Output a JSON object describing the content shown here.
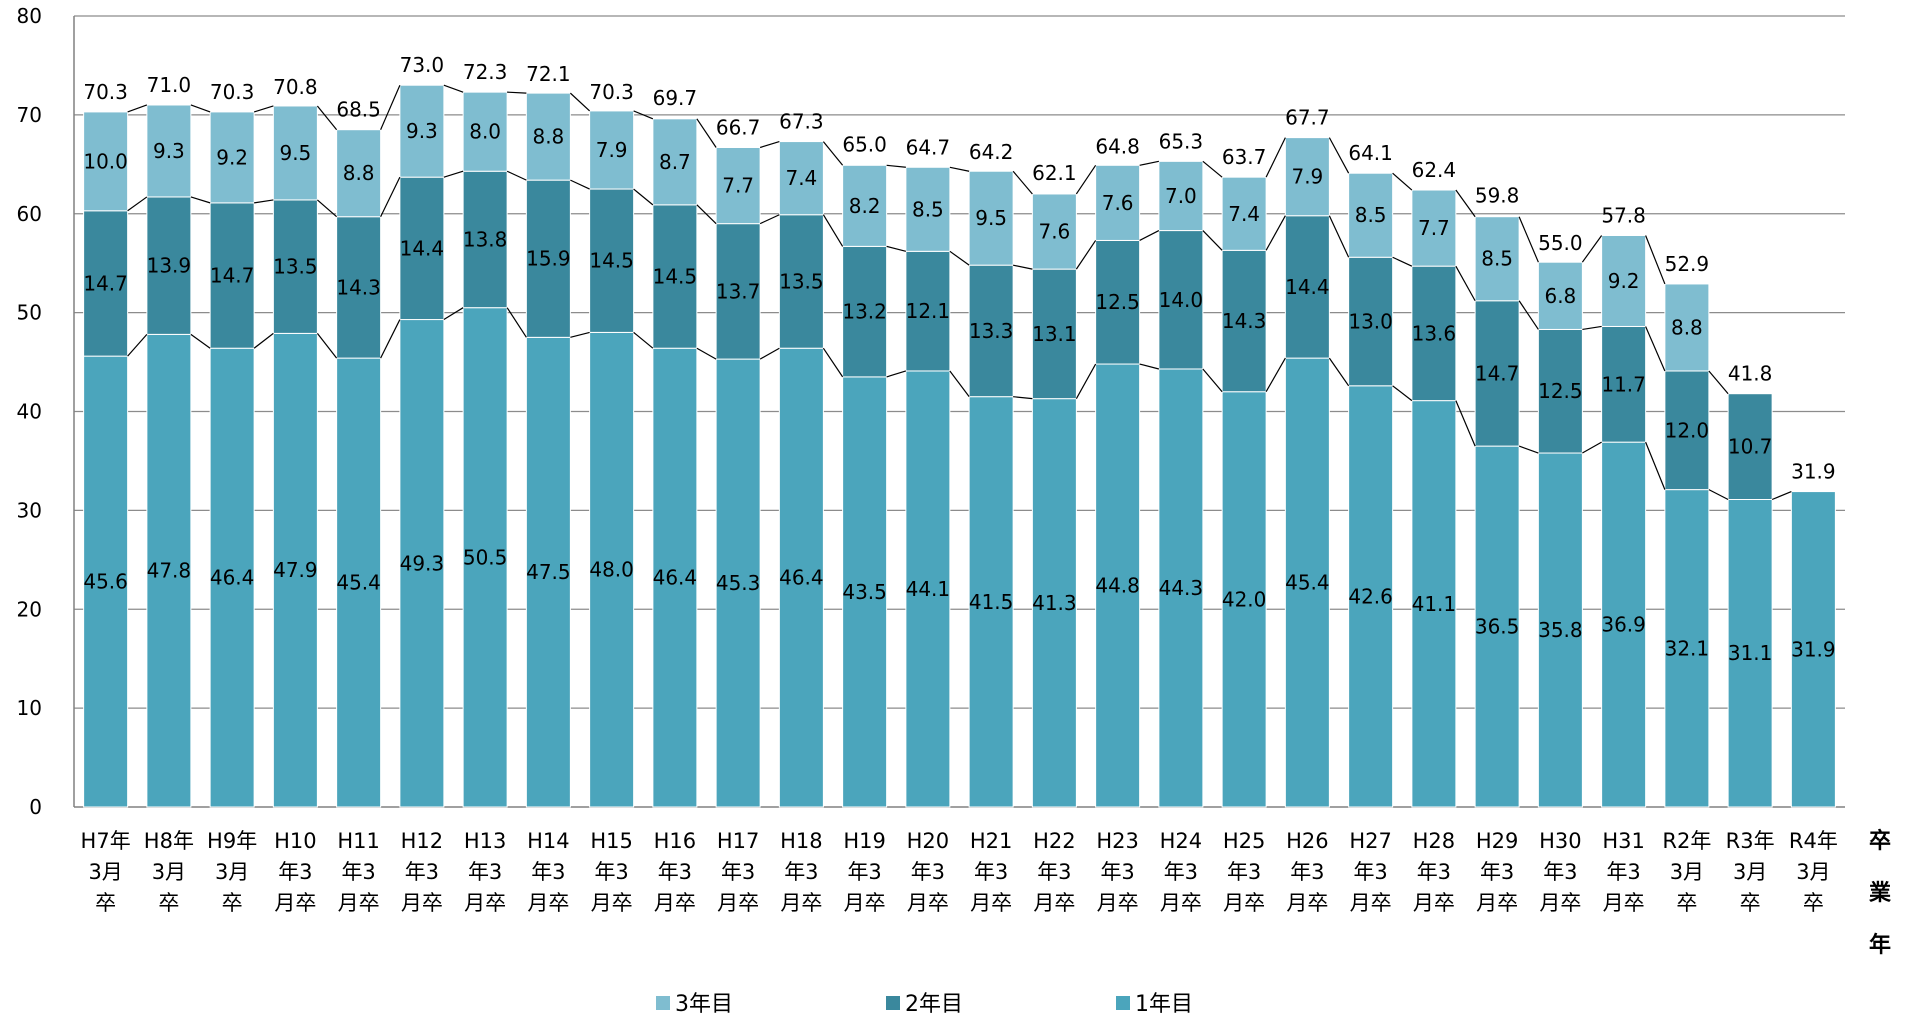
{
  "chart_data": {
    "type": "bar",
    "stacked": true,
    "categories": [
      "H7年3月卒",
      "H8年3月卒",
      "H9年3月卒",
      "H10年3月卒",
      "H11年3月卒",
      "H12年3月卒",
      "H13年3月卒",
      "H14年3月卒",
      "H15年3月卒",
      "H16年3月卒",
      "H17年3月卒",
      "H18年3月卒",
      "H19年3月卒",
      "H20年3月卒",
      "H21年3月卒",
      "H22年3月卒",
      "H23年3月卒",
      "H24年3月卒",
      "H25年3月卒",
      "H26年3月卒",
      "H27年3月卒",
      "H28年3月卒",
      "H29年3月卒",
      "H30年3月卒",
      "H31年3月卒",
      "R2年3月卒",
      "R3年3月卒",
      "R4年3月卒"
    ],
    "category_lines": [
      [
        "H7年",
        "3月",
        "卒"
      ],
      [
        "H8年",
        "3月",
        "卒"
      ],
      [
        "H9年",
        "3月",
        "卒"
      ],
      [
        "H10",
        "年3",
        "月卒"
      ],
      [
        "H11",
        "年3",
        "月卒"
      ],
      [
        "H12",
        "年3",
        "月卒"
      ],
      [
        "H13",
        "年3",
        "月卒"
      ],
      [
        "H14",
        "年3",
        "月卒"
      ],
      [
        "H15",
        "年3",
        "月卒"
      ],
      [
        "H16",
        "年3",
        "月卒"
      ],
      [
        "H17",
        "年3",
        "月卒"
      ],
      [
        "H18",
        "年3",
        "月卒"
      ],
      [
        "H19",
        "年3",
        "月卒"
      ],
      [
        "H20",
        "年3",
        "月卒"
      ],
      [
        "H21",
        "年3",
        "月卒"
      ],
      [
        "H22",
        "年3",
        "月卒"
      ],
      [
        "H23",
        "年3",
        "月卒"
      ],
      [
        "H24",
        "年3",
        "月卒"
      ],
      [
        "H25",
        "年3",
        "月卒"
      ],
      [
        "H26",
        "年3",
        "月卒"
      ],
      [
        "H27",
        "年3",
        "月卒"
      ],
      [
        "H28",
        "年3",
        "月卒"
      ],
      [
        "H29",
        "年3",
        "月卒"
      ],
      [
        "H30",
        "年3",
        "月卒"
      ],
      [
        "H31",
        "年3",
        "月卒"
      ],
      [
        "R2年",
        "3月",
        "卒"
      ],
      [
        "R3年",
        "3月",
        "卒"
      ],
      [
        "R4年",
        "3月",
        "卒"
      ]
    ],
    "series": [
      {
        "name": "1年目",
        "color": "#4BA5BC",
        "values": [
          45.6,
          47.8,
          46.4,
          47.9,
          45.4,
          49.3,
          50.5,
          47.5,
          48.0,
          46.4,
          45.3,
          46.4,
          43.5,
          44.1,
          41.5,
          41.3,
          44.8,
          44.3,
          42.0,
          45.4,
          42.6,
          41.1,
          36.5,
          35.8,
          36.9,
          32.1,
          31.1,
          31.9
        ]
      },
      {
        "name": "2年目",
        "color": "#3A889D",
        "values": [
          14.7,
          13.9,
          14.7,
          13.5,
          14.3,
          14.4,
          13.8,
          15.9,
          14.5,
          14.5,
          13.7,
          13.5,
          13.2,
          12.1,
          13.3,
          13.1,
          12.5,
          14.0,
          14.3,
          14.4,
          13.0,
          13.6,
          14.7,
          12.5,
          11.7,
          12.0,
          10.7,
          null
        ]
      },
      {
        "name": "3年目",
        "color": "#7FBDD0",
        "values": [
          10.0,
          9.3,
          9.2,
          9.5,
          8.8,
          9.3,
          8.0,
          8.8,
          7.9,
          8.7,
          7.7,
          7.4,
          8.2,
          8.5,
          9.5,
          7.6,
          7.6,
          7.0,
          7.4,
          7.9,
          8.5,
          7.7,
          8.5,
          6.8,
          9.2,
          8.8,
          null,
          null
        ]
      }
    ],
    "totals": [
      "70.3",
      "71.0",
      "70.3",
      "70.8",
      "68.5",
      "73.0",
      "72.3",
      "72.1",
      "70.3",
      "69.7",
      "66.7",
      "67.3",
      "65.0",
      "64.7",
      "64.2",
      "62.1",
      "64.8",
      "65.3",
      "63.7",
      "67.7",
      "64.1",
      "62.4",
      "59.8",
      "55.0",
      "57.8",
      "52.9",
      "41.8",
      "31.9"
    ],
    "y_ticks": [
      "0",
      "10",
      "20",
      "30",
      "40",
      "50",
      "60",
      "70",
      "80"
    ],
    "ylim": [
      0,
      80
    ],
    "xlabel": "卒業年",
    "xlabel_chars": [
      "卒",
      "業",
      "年"
    ],
    "grid": true,
    "legend_position": "bottom",
    "legend_order": [
      "3年目",
      "2年目",
      "1年目"
    ]
  }
}
